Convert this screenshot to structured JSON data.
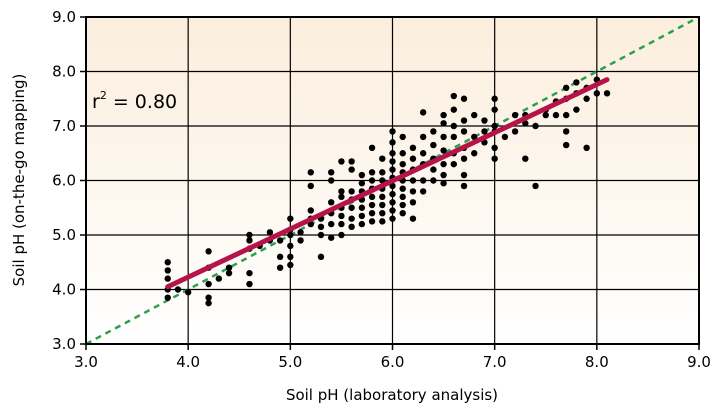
{
  "chart_data": {
    "type": "scatter",
    "xlabel": "Soil pH (laboratory analysis)",
    "ylabel": "Soil pH (on-the-go mapping)",
    "xlim": [
      3.0,
      9.0
    ],
    "ylim": [
      3.0,
      9.0
    ],
    "x_ticks": [
      "3.0",
      "4.0",
      "5.0",
      "6.0",
      "7.0",
      "8.0",
      "9.0"
    ],
    "y_ticks": [
      "3.0",
      "4.0",
      "5.0",
      "6.0",
      "7.0",
      "8.0",
      "9.0"
    ],
    "grid": true,
    "annotation": {
      "base": "r",
      "sup": "2",
      "rest": " = 0.80"
    },
    "regression_line": {
      "x": [
        3.8,
        8.1
      ],
      "y": [
        4.05,
        7.85
      ],
      "color": "#b5134a"
    },
    "identity_line": {
      "x": [
        3.0,
        9.0
      ],
      "y": [
        3.0,
        9.0
      ],
      "color": "#2e9e4f",
      "style": "dashed"
    },
    "colors": {
      "points": "#000000",
      "plot_background_top": "#fbeedd",
      "plot_background_bottom": "#ffffff"
    },
    "points": [
      [
        3.8,
        3.85
      ],
      [
        3.8,
        4.0
      ],
      [
        3.8,
        4.2
      ],
      [
        3.8,
        4.35
      ],
      [
        3.8,
        4.5
      ],
      [
        3.9,
        4.0
      ],
      [
        4.0,
        3.95
      ],
      [
        4.2,
        3.75
      ],
      [
        4.2,
        3.85
      ],
      [
        4.2,
        4.1
      ],
      [
        4.2,
        4.4
      ],
      [
        4.2,
        4.7
      ],
      [
        4.3,
        4.2
      ],
      [
        4.4,
        4.3
      ],
      [
        4.4,
        4.4
      ],
      [
        4.6,
        4.1
      ],
      [
        4.6,
        4.3
      ],
      [
        4.6,
        4.75
      ],
      [
        4.6,
        4.9
      ],
      [
        4.6,
        5.0
      ],
      [
        4.7,
        4.8
      ],
      [
        4.8,
        4.9
      ],
      [
        4.8,
        5.05
      ],
      [
        4.9,
        4.4
      ],
      [
        4.9,
        4.6
      ],
      [
        4.9,
        4.9
      ],
      [
        5.0,
        4.45
      ],
      [
        5.0,
        4.6
      ],
      [
        5.0,
        4.8
      ],
      [
        5.0,
        5.0
      ],
      [
        5.0,
        5.1
      ],
      [
        5.0,
        5.3
      ],
      [
        5.1,
        4.9
      ],
      [
        5.1,
        5.05
      ],
      [
        5.2,
        5.2
      ],
      [
        5.2,
        5.3
      ],
      [
        5.2,
        5.45
      ],
      [
        5.2,
        5.9
      ],
      [
        5.2,
        6.15
      ],
      [
        5.3,
        4.6
      ],
      [
        5.3,
        5.0
      ],
      [
        5.3,
        5.15
      ],
      [
        5.3,
        5.3
      ],
      [
        5.4,
        4.95
      ],
      [
        5.4,
        5.2
      ],
      [
        5.4,
        5.4
      ],
      [
        5.4,
        5.6
      ],
      [
        5.4,
        6.0
      ],
      [
        5.4,
        6.15
      ],
      [
        5.5,
        5.0
      ],
      [
        5.5,
        5.2
      ],
      [
        5.5,
        5.35
      ],
      [
        5.5,
        5.5
      ],
      [
        5.5,
        5.7
      ],
      [
        5.5,
        5.8
      ],
      [
        5.5,
        6.35
      ],
      [
        5.6,
        5.15
      ],
      [
        5.6,
        5.3
      ],
      [
        5.6,
        5.5
      ],
      [
        5.6,
        5.65
      ],
      [
        5.6,
        5.8
      ],
      [
        5.6,
        6.2
      ],
      [
        5.6,
        6.35
      ],
      [
        5.7,
        5.2
      ],
      [
        5.7,
        5.35
      ],
      [
        5.7,
        5.5
      ],
      [
        5.7,
        5.65
      ],
      [
        5.7,
        5.8
      ],
      [
        5.7,
        5.95
      ],
      [
        5.7,
        6.1
      ],
      [
        5.8,
        5.25
      ],
      [
        5.8,
        5.4
      ],
      [
        5.8,
        5.55
      ],
      [
        5.8,
        5.7
      ],
      [
        5.8,
        5.85
      ],
      [
        5.8,
        6.0
      ],
      [
        5.8,
        6.15
      ],
      [
        5.8,
        6.6
      ],
      [
        5.9,
        5.25
      ],
      [
        5.9,
        5.4
      ],
      [
        5.9,
        5.55
      ],
      [
        5.9,
        5.7
      ],
      [
        5.9,
        5.85
      ],
      [
        5.9,
        6.0
      ],
      [
        5.9,
        6.15
      ],
      [
        5.9,
        6.4
      ],
      [
        6.0,
        5.3
      ],
      [
        6.0,
        5.45
      ],
      [
        6.0,
        5.6
      ],
      [
        6.0,
        5.75
      ],
      [
        6.0,
        5.9
      ],
      [
        6.0,
        6.05
      ],
      [
        6.0,
        6.2
      ],
      [
        6.0,
        6.35
      ],
      [
        6.0,
        6.5
      ],
      [
        6.0,
        6.7
      ],
      [
        6.0,
        6.9
      ],
      [
        6.1,
        5.4
      ],
      [
        6.1,
        5.55
      ],
      [
        6.1,
        5.7
      ],
      [
        6.1,
        5.85
      ],
      [
        6.1,
        6.0
      ],
      [
        6.1,
        6.15
      ],
      [
        6.1,
        6.3
      ],
      [
        6.1,
        6.5
      ],
      [
        6.1,
        6.8
      ],
      [
        6.2,
        5.3
      ],
      [
        6.2,
        5.6
      ],
      [
        6.2,
        5.8
      ],
      [
        6.2,
        6.0
      ],
      [
        6.2,
        6.2
      ],
      [
        6.2,
        6.4
      ],
      [
        6.2,
        6.6
      ],
      [
        6.3,
        5.8
      ],
      [
        6.3,
        6.0
      ],
      [
        6.3,
        6.3
      ],
      [
        6.3,
        6.5
      ],
      [
        6.3,
        6.8
      ],
      [
        6.3,
        7.25
      ],
      [
        6.4,
        6.0
      ],
      [
        6.4,
        6.2
      ],
      [
        6.4,
        6.4
      ],
      [
        6.4,
        6.65
      ],
      [
        6.4,
        6.9
      ],
      [
        6.5,
        5.95
      ],
      [
        6.5,
        6.1
      ],
      [
        6.5,
        6.3
      ],
      [
        6.5,
        6.55
      ],
      [
        6.5,
        6.8
      ],
      [
        6.5,
        7.05
      ],
      [
        6.5,
        7.2
      ],
      [
        6.6,
        6.3
      ],
      [
        6.6,
        6.5
      ],
      [
        6.6,
        6.8
      ],
      [
        6.6,
        7.0
      ],
      [
        6.6,
        7.3
      ],
      [
        6.6,
        7.55
      ],
      [
        6.7,
        5.9
      ],
      [
        6.7,
        6.1
      ],
      [
        6.7,
        6.4
      ],
      [
        6.7,
        6.6
      ],
      [
        6.7,
        6.9
      ],
      [
        6.7,
        7.1
      ],
      [
        6.7,
        7.5
      ],
      [
        6.8,
        6.5
      ],
      [
        6.8,
        6.8
      ],
      [
        6.8,
        7.2
      ],
      [
        6.9,
        6.7
      ],
      [
        6.9,
        6.9
      ],
      [
        6.9,
        7.1
      ],
      [
        7.0,
        6.4
      ],
      [
        7.0,
        6.6
      ],
      [
        7.0,
        6.9
      ],
      [
        7.0,
        7.0
      ],
      [
        7.0,
        7.3
      ],
      [
        7.0,
        7.5
      ],
      [
        7.1,
        6.8
      ],
      [
        7.2,
        6.9
      ],
      [
        7.2,
        7.2
      ],
      [
        7.3,
        6.4
      ],
      [
        7.3,
        7.05
      ],
      [
        7.3,
        7.2
      ],
      [
        7.4,
        5.9
      ],
      [
        7.4,
        7.0
      ],
      [
        7.5,
        7.2
      ],
      [
        7.5,
        7.3
      ],
      [
        7.6,
        7.2
      ],
      [
        7.6,
        7.45
      ],
      [
        7.7,
        6.65
      ],
      [
        7.7,
        6.9
      ],
      [
        7.7,
        7.2
      ],
      [
        7.7,
        7.5
      ],
      [
        7.7,
        7.7
      ],
      [
        7.8,
        7.3
      ],
      [
        7.8,
        7.6
      ],
      [
        7.8,
        7.8
      ],
      [
        7.9,
        6.6
      ],
      [
        7.9,
        7.5
      ],
      [
        7.9,
        7.7
      ],
      [
        8.0,
        7.6
      ],
      [
        8.0,
        7.85
      ],
      [
        8.1,
        7.6
      ]
    ]
  }
}
